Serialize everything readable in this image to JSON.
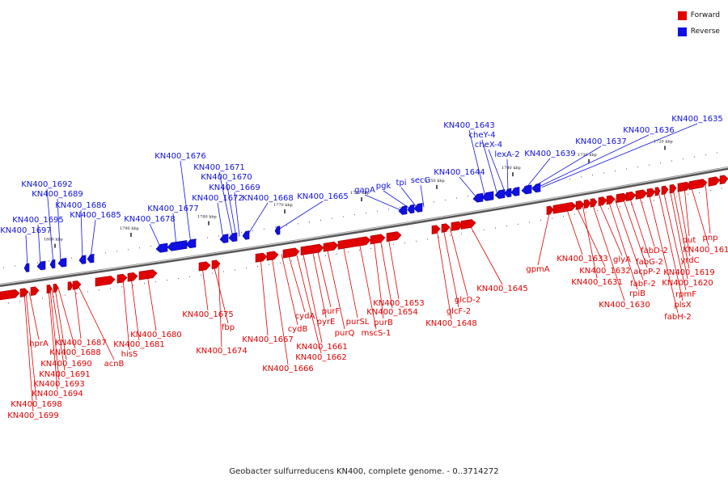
{
  "legend": {
    "forward_label": "Forward",
    "reverse_label": "Reverse",
    "forward_color": "#e00000",
    "reverse_color": "#1010e0"
  },
  "caption": "Geobacter sulfurreducens KN400, complete genome. - 0..3714272",
  "scale_ticks": [
    "1800 kbp",
    "1790 kbp",
    "1780 kbp",
    "1770 kbp",
    "1760 kbp",
    "1750 kbp",
    "1740 kbp",
    "1730 kbp",
    "1720 kbp"
  ],
  "reverse_labels": [
    "KN400_1697",
    "KN400_1695",
    "KN400_1692",
    "KN400_1689",
    "KN400_1686",
    "KN400_1685",
    "KN400_1678",
    "KN400_1677",
    "KN400_1676",
    "KN400_1672",
    "KN400_1671",
    "KN400_1670",
    "KN400_1669",
    "KN400_1668",
    "KN400_1665",
    "gapA",
    "pgk",
    "tpi",
    "secG",
    "KN400_1644",
    "KN400_1643",
    "cheY-4",
    "cheX-4",
    "lexA-2",
    "KN400_1639",
    "KN400_1637",
    "KN400_1636",
    "KN400_1635"
  ],
  "forward_labels": [
    "KN400_1699",
    "KN400_1698",
    "hprA",
    "KN400_1694",
    "KN400_1693",
    "KN400_1691",
    "KN400_1690",
    "KN400_1688",
    "KN400_1687",
    "acnB",
    "hisS",
    "KN400_1681",
    "KN400_1680",
    "KN400_1675",
    "fbp",
    "KN400_1674",
    "KN400_1667",
    "KN400_1666",
    "cydB",
    "cydA",
    "KN400_1662",
    "KN400_1661",
    "pyrE",
    "purF",
    "purQ",
    "purSL",
    "mscS-1",
    "purB",
    "KN400_1654",
    "KN400_1653",
    "KN400_1648",
    "glcF-2",
    "glcD-2",
    "KN400_1645",
    "gpmA",
    "KN400_1633",
    "KN400_1632",
    "KN400_1631",
    "KN400_1630",
    "glyA",
    "rpiB",
    "fabF-2",
    "acpP-2",
    "fabG-2",
    "fabD-2",
    "fabH-2",
    "plsX",
    "rpmF",
    "KN400_1620",
    "KN400_1619",
    "yrdC",
    "dut",
    "KN400_1616",
    "pnp"
  ]
}
